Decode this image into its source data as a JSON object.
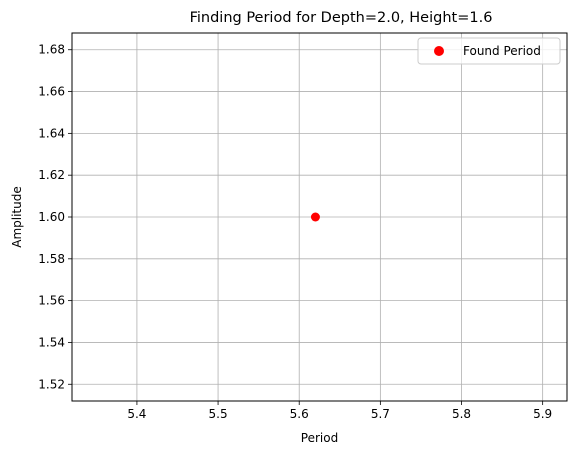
{
  "chart_data": {
    "type": "scatter",
    "title": "Finding Period for Depth=2.0, Height=1.6",
    "xlabel": "Period",
    "ylabel": "Amplitude",
    "xlim": [
      5.32,
      5.93
    ],
    "ylim": [
      1.512,
      1.688
    ],
    "x_ticks": [
      "5.4",
      "5.5",
      "5.6",
      "5.7",
      "5.8",
      "5.9"
    ],
    "y_ticks": [
      "1.52",
      "1.54",
      "1.56",
      "1.58",
      "1.60",
      "1.62",
      "1.64",
      "1.66",
      "1.68"
    ],
    "grid": true,
    "legend_position": "top-right",
    "series": [
      {
        "name": "Found Period",
        "color": "#ff0000",
        "points": [
          {
            "x": 5.62,
            "y": 1.6
          }
        ]
      }
    ]
  }
}
